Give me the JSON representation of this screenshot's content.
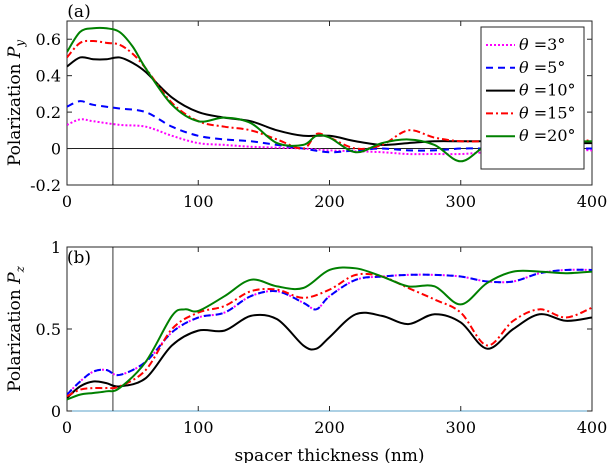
{
  "chart_data": [
    {
      "type": "line",
      "panel_label": "(a)",
      "ylabel": "Polarization ",
      "ylabel_sym": "P",
      "ylabel_sub": "y",
      "xlabel": "",
      "xlim": [
        0,
        400
      ],
      "ylim": [
        -0.2,
        0.7
      ],
      "xticks": [
        "0",
        "100",
        "200",
        "300",
        "400"
      ],
      "yticks": [
        {
          "v": -0.2,
          "t": "-0.2"
        },
        {
          "v": 0,
          "t": "0"
        },
        {
          "v": 0.2,
          "t": "0.2"
        },
        {
          "v": 0.4,
          "t": "0.4"
        },
        {
          "v": 0.6,
          "t": "0.6"
        }
      ],
      "vline_x": 35,
      "zero_line": true,
      "legend": {
        "location": "top-right",
        "entries": [
          {
            "sym": "θ",
            "eq": " =",
            "val": "3°",
            "series": 0
          },
          {
            "sym": "θ",
            "eq": " =",
            "val": "5°",
            "series": 1
          },
          {
            "sym": "θ",
            "eq": " =",
            "val": "10°",
            "series": 2
          },
          {
            "sym": "θ",
            "eq": " =",
            "val": "15°",
            "series": 3
          },
          {
            "sym": "θ",
            "eq": " =",
            "val": "20°",
            "series": 4
          }
        ]
      },
      "series": [
        {
          "name": "θ = 3°",
          "color": "#ff00ff",
          "dash": "2,2",
          "x": [
            0,
            10,
            20,
            40,
            60,
            80,
            100,
            120,
            140,
            160,
            180,
            200,
            220,
            240,
            260,
            280,
            300,
            320,
            340,
            360,
            380,
            400
          ],
          "y": [
            0.13,
            0.16,
            0.15,
            0.13,
            0.12,
            0.07,
            0.03,
            0.02,
            0.01,
            0.005,
            0.0,
            -0.01,
            -0.015,
            -0.02,
            -0.03,
            -0.03,
            -0.03,
            -0.02,
            -0.015,
            -0.01,
            -0.005,
            -0.01
          ]
        },
        {
          "name": "θ = 5°",
          "color": "#0000ff",
          "dash": "7,5",
          "x": [
            0,
            10,
            20,
            40,
            60,
            80,
            100,
            120,
            140,
            160,
            180,
            200,
            220,
            240,
            260,
            280,
            300,
            320,
            340,
            360,
            380,
            400
          ],
          "y": [
            0.23,
            0.26,
            0.24,
            0.22,
            0.2,
            0.12,
            0.07,
            0.05,
            0.04,
            0.02,
            0.0,
            -0.02,
            -0.01,
            0.0,
            -0.01,
            -0.01,
            0.0,
            0.0,
            0.0,
            0.0,
            0.0,
            0.0
          ]
        },
        {
          "name": "θ = 10°",
          "color": "#000000",
          "dash": "",
          "x": [
            0,
            10,
            20,
            30,
            40,
            50,
            60,
            80,
            100,
            120,
            140,
            160,
            180,
            200,
            220,
            240,
            260,
            280,
            300,
            320,
            340,
            360,
            380,
            400
          ],
          "y": [
            0.45,
            0.5,
            0.49,
            0.49,
            0.5,
            0.47,
            0.42,
            0.28,
            0.2,
            0.17,
            0.15,
            0.1,
            0.07,
            0.07,
            0.04,
            0.02,
            0.03,
            0.04,
            0.04,
            0.04,
            0.04,
            0.03,
            0.03,
            0.03
          ]
        },
        {
          "name": "θ = 15°",
          "color": "#ff0000",
          "dash": "7,3,2,3",
          "x": [
            0,
            10,
            20,
            30,
            40,
            50,
            60,
            80,
            100,
            120,
            140,
            160,
            180,
            190,
            200,
            220,
            240,
            260,
            280,
            300,
            320,
            340,
            360,
            380,
            400
          ],
          "y": [
            0.5,
            0.58,
            0.59,
            0.58,
            0.57,
            0.52,
            0.44,
            0.25,
            0.15,
            0.12,
            0.1,
            0.05,
            0.0,
            0.08,
            0.06,
            0.0,
            0.02,
            0.1,
            0.06,
            0.04,
            0.04,
            0.04,
            0.05,
            0.06,
            0.04
          ]
        },
        {
          "name": "θ = 20°",
          "color": "#008000",
          "dash": "",
          "x": [
            0,
            10,
            20,
            30,
            40,
            50,
            60,
            80,
            100,
            120,
            140,
            160,
            180,
            190,
            200,
            220,
            240,
            260,
            280,
            300,
            320,
            340,
            360,
            380,
            400
          ],
          "y": [
            0.53,
            0.64,
            0.66,
            0.66,
            0.64,
            0.56,
            0.44,
            0.24,
            0.15,
            0.17,
            0.14,
            0.03,
            0.02,
            0.07,
            0.06,
            -0.02,
            0.03,
            0.05,
            0.02,
            -0.07,
            0.02,
            0.05,
            0.05,
            0.04,
            0.04
          ]
        }
      ]
    },
    {
      "type": "line",
      "panel_label": "(b)",
      "ylabel": "Polarization ",
      "ylabel_sym": "P",
      "ylabel_sub": "z",
      "xlabel": "spacer thickness (nm)",
      "xlim": [
        0,
        400
      ],
      "ylim": [
        0,
        1
      ],
      "xticks": [
        "0",
        "100",
        "200",
        "300",
        "400"
      ],
      "yticks": [
        {
          "v": 0,
          "t": "0"
        },
        {
          "v": 0.5,
          "t": "0.5"
        },
        {
          "v": 1,
          "t": "1"
        }
      ],
      "vline_x": 35,
      "zero_line": false,
      "series": [
        {
          "name": "θ = 3°",
          "color": "#ff00ff",
          "dash": "2,2",
          "x": [
            0,
            10,
            20,
            30,
            40,
            60,
            80,
            100,
            120,
            140,
            160,
            180,
            190,
            200,
            220,
            240,
            260,
            280,
            300,
            320,
            340,
            360,
            380,
            400
          ],
          "y": [
            0.1,
            0.18,
            0.24,
            0.25,
            0.22,
            0.3,
            0.48,
            0.57,
            0.6,
            0.7,
            0.73,
            0.66,
            0.62,
            0.7,
            0.8,
            0.82,
            0.83,
            0.83,
            0.82,
            0.79,
            0.79,
            0.84,
            0.86,
            0.86
          ]
        },
        {
          "name": "θ = 5°",
          "color": "#0000ff",
          "dash": "7,5",
          "x": [
            0,
            10,
            20,
            30,
            40,
            60,
            80,
            100,
            120,
            140,
            160,
            180,
            190,
            200,
            220,
            240,
            260,
            280,
            300,
            320,
            340,
            360,
            380,
            400
          ],
          "y": [
            0.1,
            0.18,
            0.24,
            0.25,
            0.22,
            0.3,
            0.48,
            0.57,
            0.6,
            0.7,
            0.73,
            0.66,
            0.62,
            0.7,
            0.8,
            0.82,
            0.83,
            0.83,
            0.82,
            0.79,
            0.79,
            0.84,
            0.86,
            0.86
          ]
        },
        {
          "name": "θ = 10°",
          "color": "#000000",
          "dash": "",
          "x": [
            0,
            10,
            20,
            30,
            40,
            60,
            80,
            100,
            120,
            140,
            160,
            180,
            190,
            200,
            220,
            240,
            260,
            280,
            300,
            320,
            340,
            360,
            380,
            400
          ],
          "y": [
            0.08,
            0.15,
            0.18,
            0.17,
            0.15,
            0.2,
            0.4,
            0.49,
            0.49,
            0.58,
            0.56,
            0.4,
            0.38,
            0.45,
            0.59,
            0.58,
            0.53,
            0.59,
            0.54,
            0.38,
            0.5,
            0.59,
            0.55,
            0.57
          ]
        },
        {
          "name": "θ = 15°",
          "color": "#ff0000",
          "dash": "7,3,2,3",
          "x": [
            0,
            10,
            20,
            30,
            40,
            60,
            80,
            100,
            120,
            140,
            160,
            180,
            200,
            220,
            240,
            260,
            280,
            300,
            320,
            340,
            360,
            380,
            400
          ],
          "y": [
            0.09,
            0.13,
            0.14,
            0.14,
            0.15,
            0.25,
            0.5,
            0.6,
            0.64,
            0.73,
            0.74,
            0.69,
            0.74,
            0.83,
            0.82,
            0.75,
            0.68,
            0.6,
            0.4,
            0.55,
            0.62,
            0.57,
            0.63
          ]
        },
        {
          "name": "θ = 20°",
          "color": "#008000",
          "dash": "",
          "x": [
            0,
            10,
            20,
            30,
            40,
            60,
            80,
            90,
            100,
            120,
            140,
            160,
            180,
            200,
            220,
            240,
            260,
            280,
            300,
            320,
            340,
            360,
            380,
            400
          ],
          "y": [
            0.07,
            0.1,
            0.11,
            0.12,
            0.14,
            0.3,
            0.58,
            0.62,
            0.61,
            0.7,
            0.8,
            0.76,
            0.75,
            0.86,
            0.87,
            0.82,
            0.76,
            0.76,
            0.65,
            0.78,
            0.85,
            0.85,
            0.84,
            0.85
          ]
        }
      ]
    }
  ]
}
